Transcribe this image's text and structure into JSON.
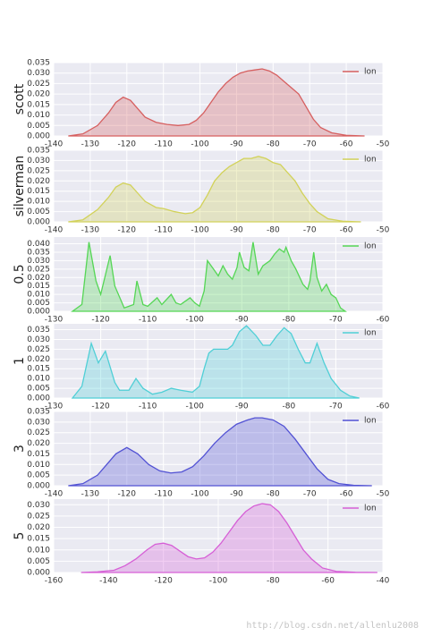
{
  "chart_data": [
    {
      "type": "area",
      "y_label": "scott",
      "xlim": [
        -140,
        -50
      ],
      "xticks": [
        -140,
        -130,
        -120,
        -110,
        -100,
        -90,
        -80,
        -70,
        -60,
        -50
      ],
      "ylim": [
        0,
        0.035
      ],
      "yticks": [
        {
          "value": 0,
          "label": "0.000"
        },
        0.005,
        {
          "value": 0.01,
          "label": "0.010"
        },
        0.015,
        {
          "value": 0.02,
          "label": "0.020"
        },
        0.025,
        {
          "value": 0.03,
          "label": "0.030"
        },
        0.035
      ],
      "grid": true,
      "legend": "upper right",
      "x": [
        -136,
        -132,
        -128,
        -125,
        -123,
        -121,
        -119,
        -117,
        -115,
        -112,
        -109,
        -106,
        -103,
        -101,
        -99,
        -97,
        -95,
        -93,
        -91,
        -89,
        -87,
        -85,
        -83,
        -81,
        -79,
        -77,
        -75,
        -73,
        -71,
        -69,
        -67,
        -64,
        -60,
        -55
      ],
      "series": [
        {
          "name": "lon",
          "color": "#d65f5f",
          "values": [
            0,
            0.001,
            0.005,
            0.011,
            0.016,
            0.0185,
            0.017,
            0.013,
            0.009,
            0.0065,
            0.0055,
            0.005,
            0.0055,
            0.0075,
            0.011,
            0.016,
            0.021,
            0.025,
            0.028,
            0.03,
            0.031,
            0.0315,
            0.032,
            0.031,
            0.029,
            0.026,
            0.023,
            0.02,
            0.014,
            0.008,
            0.004,
            0.0015,
            0.0003,
            0
          ]
        }
      ]
    },
    {
      "type": "area",
      "y_label": "silverman",
      "xlim": [
        -140,
        -50
      ],
      "xticks": [
        -140,
        -130,
        -120,
        -110,
        -100,
        -90,
        -80,
        -70,
        -60,
        -50
      ],
      "ylim": [
        0,
        0.035
      ],
      "yticks": [
        {
          "value": 0,
          "label": "0.000"
        },
        0.005,
        {
          "value": 0.01,
          "label": "0.010"
        },
        0.015,
        {
          "value": 0.02,
          "label": "0.020"
        },
        0.025,
        {
          "value": 0.03,
          "label": "0.030"
        },
        0.035
      ],
      "grid": true,
      "legend": "upper right",
      "x": [
        -136,
        -132,
        -128,
        -125,
        -123,
        -121,
        -119,
        -117,
        -115,
        -112,
        -110,
        -107,
        -104,
        -102,
        -100,
        -98,
        -96,
        -94,
        -92,
        -90,
        -88,
        -86,
        -84,
        -82,
        -80,
        -78,
        -76,
        -74,
        -72,
        -70,
        -68,
        -65,
        -61,
        -56
      ],
      "series": [
        {
          "name": "lon",
          "color": "#d2d25a",
          "values": [
            0,
            0.001,
            0.006,
            0.012,
            0.017,
            0.019,
            0.018,
            0.014,
            0.01,
            0.007,
            0.0065,
            0.005,
            0.004,
            0.0045,
            0.007,
            0.013,
            0.02,
            0.024,
            0.027,
            0.029,
            0.031,
            0.031,
            0.032,
            0.031,
            0.029,
            0.028,
            0.024,
            0.02,
            0.014,
            0.009,
            0.005,
            0.0015,
            0.0003,
            0
          ]
        }
      ]
    },
    {
      "type": "area",
      "y_label": "0.5",
      "xlim": [
        -130,
        -60
      ],
      "xticks": [
        -130,
        -120,
        -110,
        -100,
        -90,
        -80,
        -70,
        -60
      ],
      "ylim": [
        0,
        0.044
      ],
      "yticks": [
        {
          "value": 0,
          "label": "0.000"
        },
        0.005,
        {
          "value": 0.01,
          "label": "0.010"
        },
        0.015,
        {
          "value": 0.02,
          "label": "0.020"
        },
        0.025,
        {
          "value": 0.03,
          "label": "0.030"
        },
        0.035,
        {
          "value": 0.04,
          "label": "0.040"
        }
      ],
      "grid": true,
      "legend": "upper right",
      "x": [
        -126,
        -124,
        -122.5,
        -121,
        -120,
        -118,
        -117,
        -115,
        -114,
        -113,
        -112.3,
        -111,
        -110,
        -108,
        -107,
        -105,
        -104,
        -103,
        -101,
        -100,
        -99,
        -98,
        -97.3,
        -96,
        -95,
        -94,
        -93,
        -92,
        -91,
        -90.5,
        -89.5,
        -88.5,
        -87.6,
        -86.5,
        -85.5,
        -84,
        -83,
        -82,
        -81,
        -80.6,
        -79.5,
        -78.5,
        -77,
        -76,
        -75.5,
        -74.7,
        -74,
        -73,
        -72,
        -71,
        -70,
        -69,
        -68
      ],
      "series": [
        {
          "name": "lon",
          "color": "#55d655",
          "values": [
            0,
            0.004,
            0.041,
            0.018,
            0.01,
            0.033,
            0.015,
            0.002,
            0.003,
            0.004,
            0.018,
            0.004,
            0.003,
            0.008,
            0.004,
            0.01,
            0.005,
            0.004,
            0.008,
            0.005,
            0.003,
            0.012,
            0.03,
            0.025,
            0.021,
            0.027,
            0.022,
            0.019,
            0.026,
            0.035,
            0.026,
            0.024,
            0.041,
            0.022,
            0.027,
            0.03,
            0.034,
            0.037,
            0.035,
            0.038,
            0.03,
            0.025,
            0.016,
            0.013,
            0.018,
            0.035,
            0.02,
            0.012,
            0.016,
            0.01,
            0.008,
            0.002,
            0
          ]
        }
      ]
    },
    {
      "type": "area",
      "y_label": "1",
      "xlim": [
        -130,
        -60
      ],
      "xticks": [
        -130,
        -120,
        -110,
        -100,
        -90,
        -80,
        -70,
        -60
      ],
      "ylim": [
        0,
        0.038
      ],
      "yticks": [
        {
          "value": 0,
          "label": "0.000"
        },
        0.005,
        {
          "value": 0.01,
          "label": "0.010"
        },
        0.015,
        {
          "value": 0.02,
          "label": "0.020"
        },
        0.025,
        {
          "value": 0.03,
          "label": "0.030"
        },
        0.035
      ],
      "grid": true,
      "legend": "upper right",
      "x": [
        -126,
        -124,
        -122,
        -120.5,
        -119,
        -117,
        -116,
        -114,
        -112.5,
        -111,
        -109,
        -107,
        -105,
        -103,
        -100.5,
        -99,
        -98,
        -97,
        -96,
        -94.5,
        -93,
        -92,
        -90.5,
        -89,
        -87,
        -85.5,
        -84,
        -82.5,
        -81,
        -79.5,
        -78,
        -76.5,
        -75.5,
        -74,
        -72.5,
        -71,
        -69,
        -67,
        -65
      ],
      "series": [
        {
          "name": "lon",
          "color": "#4fcfd6",
          "values": [
            0,
            0.006,
            0.028,
            0.018,
            0.024,
            0.008,
            0.004,
            0.004,
            0.01,
            0.005,
            0.002,
            0.003,
            0.005,
            0.004,
            0.003,
            0.006,
            0.015,
            0.023,
            0.025,
            0.025,
            0.025,
            0.027,
            0.034,
            0.037,
            0.032,
            0.027,
            0.027,
            0.032,
            0.036,
            0.033,
            0.025,
            0.018,
            0.018,
            0.028,
            0.018,
            0.01,
            0.004,
            0.001,
            0
          ]
        }
      ]
    },
    {
      "type": "area",
      "y_label": "3",
      "xlim": [
        -140,
        -50
      ],
      "xticks": [
        -140,
        -130,
        -120,
        -110,
        -100,
        -90,
        -80,
        -70,
        -60,
        -50
      ],
      "ylim": [
        0,
        0.035
      ],
      "yticks": [
        {
          "value": 0,
          "label": "0.000"
        },
        0.005,
        {
          "value": 0.01,
          "label": "0.010"
        },
        0.015,
        {
          "value": 0.02,
          "label": "0.020"
        },
        0.025,
        {
          "value": 0.03,
          "label": "0.030"
        },
        0.035
      ],
      "grid": true,
      "legend": "upper right",
      "x": [
        -136,
        -132,
        -128,
        -125,
        -123,
        -120,
        -117,
        -114,
        -111,
        -108,
        -105,
        -102,
        -99,
        -96,
        -93,
        -90,
        -87,
        -85,
        -83,
        -80,
        -77,
        -74,
        -71,
        -68,
        -65,
        -62,
        -58,
        -53
      ],
      "series": [
        {
          "name": "lon",
          "color": "#5252d4",
          "values": [
            0,
            0.001,
            0.005,
            0.011,
            0.015,
            0.018,
            0.015,
            0.01,
            0.007,
            0.006,
            0.0065,
            0.009,
            0.014,
            0.02,
            0.025,
            0.029,
            0.031,
            0.032,
            0.032,
            0.031,
            0.028,
            0.022,
            0.015,
            0.008,
            0.003,
            0.001,
            0.0002,
            0
          ]
        }
      ]
    },
    {
      "type": "area",
      "y_label": "5",
      "xlim": [
        -160,
        -40
      ],
      "xticks": [
        -160,
        -140,
        -120,
        -100,
        -80,
        -60,
        -40
      ],
      "ylim": [
        0,
        0.0325
      ],
      "yticks": [
        {
          "value": 0,
          "label": "0.000"
        },
        0.005,
        {
          "value": 0.01,
          "label": "0.010"
        },
        0.015,
        {
          "value": 0.02,
          "label": "0.020"
        },
        0.025,
        {
          "value": 0.03,
          "label": "0.030"
        }
      ],
      "grid": true,
      "legend": "upper right",
      "x": [
        -150,
        -144,
        -138,
        -134,
        -130,
        -126,
        -123,
        -120,
        -117,
        -114,
        -111,
        -108,
        -105,
        -102,
        -99,
        -96,
        -93,
        -90,
        -87,
        -84,
        -81,
        -78,
        -75,
        -72,
        -69,
        -66,
        -62,
        -57,
        -50,
        -42
      ],
      "series": [
        {
          "name": "lon",
          "color": "#d65fd6",
          "values": [
            0,
            0.0003,
            0.001,
            0.003,
            0.006,
            0.01,
            0.0125,
            0.013,
            0.012,
            0.0095,
            0.007,
            0.006,
            0.0065,
            0.009,
            0.013,
            0.018,
            0.023,
            0.027,
            0.0295,
            0.0305,
            0.03,
            0.027,
            0.022,
            0.016,
            0.01,
            0.006,
            0.002,
            0.0005,
            0.0001,
            0
          ]
        }
      ]
    }
  ],
  "watermark": "http://blog.csdn.net/allenlu2008"
}
